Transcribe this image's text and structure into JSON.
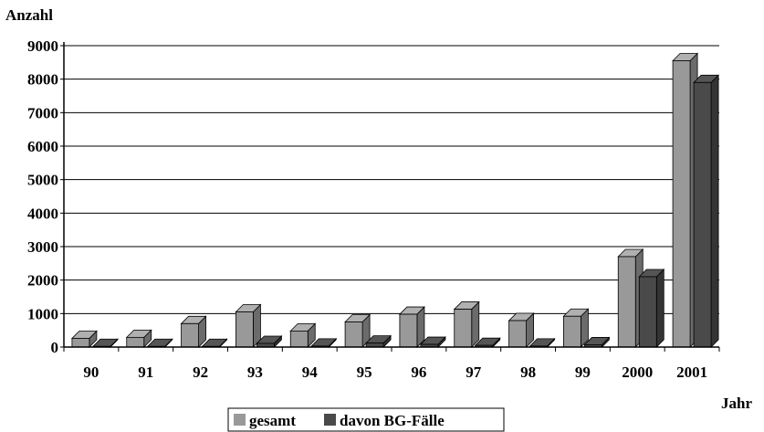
{
  "chart_data": {
    "type": "bar",
    "ylabel": "Anzahl",
    "xlabel": "Jahr",
    "categories": [
      "90",
      "91",
      "92",
      "93",
      "94",
      "95",
      "96",
      "97",
      "98",
      "99",
      "2000",
      "2001"
    ],
    "series": [
      {
        "name": "gesamt",
        "values": [
          260,
          290,
          700,
          1050,
          480,
          750,
          980,
          1130,
          790,
          920,
          2700,
          8550
        ]
      },
      {
        "name": "davon BG-Fälle",
        "values": [
          20,
          20,
          20,
          110,
          30,
          120,
          80,
          50,
          30,
          70,
          2100,
          7900
        ]
      }
    ],
    "ylim": [
      0,
      9000
    ],
    "yticks": [
      "0",
      "1000",
      "2000",
      "3000",
      "4000",
      "5000",
      "6000",
      "7000",
      "8000",
      "9000"
    ],
    "grid": true,
    "legend_position": "bottom-center",
    "colors": {
      "gesamt": "#999999",
      "bg": "#4a4a4a",
      "axis": "#000000",
      "grid": "#000000"
    }
  }
}
